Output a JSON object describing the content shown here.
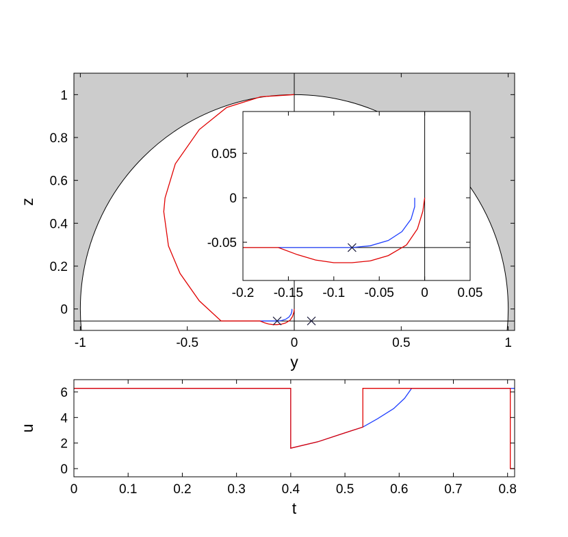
{
  "chart_data": [
    {
      "type": "line",
      "xlabel": "y",
      "ylabel": "z",
      "xlim": [
        -1.03,
        1.03
      ],
      "ylim": [
        -0.1,
        1.1
      ],
      "xticks": [
        -1,
        -0.5,
        0,
        0.5,
        1
      ],
      "yticks": [
        0,
        0.2,
        0.4,
        0.6,
        0.8,
        1
      ],
      "circle_radius": 1,
      "shade_color": "#cccccc",
      "hline": -0.056,
      "vline": 0,
      "markers": {
        "x": [
          -0.08,
          0.08
        ],
        "y": [
          -0.056,
          -0.056
        ],
        "color": "#1a1a3a"
      },
      "series": [
        {
          "color": "#2040ff",
          "x": [
            -0.161,
            -0.08,
            -0.06,
            -0.04,
            -0.025,
            -0.015,
            -0.011,
            -0.011
          ],
          "values": [
            -0.056,
            -0.056,
            -0.054,
            -0.048,
            -0.038,
            -0.024,
            -0.01,
            0
          ]
        },
        {
          "color": "#e00000",
          "x": [
            0,
            -0.157,
            -0.316,
            -0.444,
            -0.556,
            -0.604,
            -0.61,
            -0.588,
            -0.534,
            -0.444,
            -0.342,
            -0.161,
            -0.14,
            -0.12,
            -0.1,
            -0.08,
            -0.06,
            -0.04,
            -0.02,
            -0.008,
            -0.002,
            0
          ],
          "values": [
            1,
            0.99,
            0.94,
            0.837,
            0.677,
            0.518,
            0.454,
            0.294,
            0.166,
            0.038,
            -0.056,
            -0.056,
            -0.064,
            -0.07,
            -0.073,
            -0.073,
            -0.071,
            -0.065,
            -0.053,
            -0.035,
            -0.015,
            0
          ]
        }
      ]
    },
    {
      "type": "line",
      "xlim": [
        -0.2,
        0.05
      ],
      "ylim": [
        -0.093,
        0.097
      ],
      "xticks": [
        -0.2,
        -0.15,
        -0.1,
        -0.05,
        0,
        0.05
      ],
      "yticks": [
        -0.05,
        0,
        0.05
      ],
      "hline": -0.056,
      "vline": 0,
      "markers": {
        "x": [
          -0.08
        ],
        "y": [
          -0.056
        ],
        "color": "#1a1a3a"
      },
      "series": [
        {
          "color": "#2040ff",
          "x": [
            -0.161,
            -0.08,
            -0.06,
            -0.04,
            -0.025,
            -0.015,
            -0.011,
            -0.011
          ],
          "values": [
            -0.056,
            -0.056,
            -0.054,
            -0.048,
            -0.038,
            -0.024,
            -0.01,
            0
          ]
        },
        {
          "color": "#e00000",
          "x": [
            -0.2,
            -0.161,
            -0.14,
            -0.12,
            -0.1,
            -0.08,
            -0.06,
            -0.04,
            -0.02,
            -0.008,
            -0.002,
            0
          ],
          "values": [
            -0.056,
            -0.056,
            -0.064,
            -0.07,
            -0.073,
            -0.073,
            -0.071,
            -0.065,
            -0.053,
            -0.035,
            -0.015,
            0
          ]
        }
      ]
    },
    {
      "type": "line",
      "xlabel": "t",
      "ylabel": "u",
      "xlim": [
        0,
        0.813
      ],
      "ylim": [
        -0.64,
        6.96
      ],
      "xticks": [
        0,
        0.1,
        0.2,
        0.3,
        0.4,
        0.5,
        0.6,
        0.7,
        0.8
      ],
      "yticks": [
        0,
        2,
        4,
        6
      ],
      "series": [
        {
          "color": "#2040ff",
          "x": [
            0,
            0.4,
            0.4,
            0.45,
            0.5,
            0.533,
            0.56,
            0.59,
            0.61,
            0.623,
            0.813
          ],
          "values": [
            6.28,
            6.28,
            1.6,
            2.1,
            2.8,
            3.25,
            3.9,
            4.7,
            5.5,
            6.28,
            6.28
          ]
        },
        {
          "color": "#e00000",
          "x": [
            0,
            0.4,
            0.4,
            0.45,
            0.5,
            0.533,
            0.533,
            0.805,
            0.805,
            0.813
          ],
          "values": [
            6.28,
            6.28,
            1.6,
            2.1,
            2.8,
            3.25,
            6.28,
            6.28,
            0,
            0
          ]
        }
      ]
    }
  ]
}
